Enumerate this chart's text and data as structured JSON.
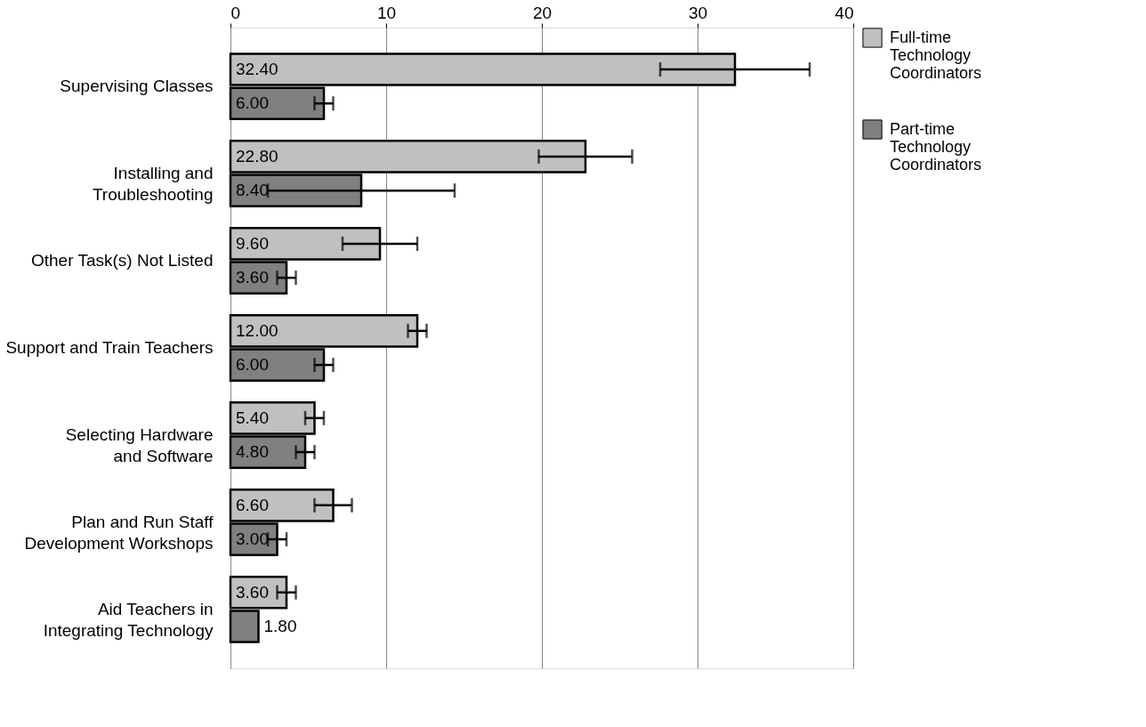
{
  "chart_data": {
    "type": "bar",
    "orientation": "horizontal",
    "categories": [
      "Supervising Classes",
      "Installing and Troubleshooting",
      "Other Task(s) Not Listed",
      "Support and Train Teachers",
      "Selecting Hardware and Software",
      "Plan and Run Staff Development Workshops",
      "Aid Teachers in Integrating Technology"
    ],
    "series": [
      {
        "name": "Full-time Technology Coordinators",
        "color": "#c0c0c0",
        "values": [
          32.4,
          22.8,
          9.6,
          12.0,
          5.4,
          6.6,
          3.6
        ],
        "errors": [
          4.8,
          3.0,
          2.4,
          0.6,
          0.6,
          1.2,
          0.6
        ],
        "value_labels": [
          "32.40",
          "22.80",
          "9.60",
          "12.00",
          "5.40",
          "6.60",
          "3.60"
        ]
      },
      {
        "name": "Part-time Technology Coordinators",
        "color": "#808080",
        "values": [
          6.0,
          8.4,
          3.6,
          6.0,
          4.8,
          3.0,
          1.8
        ],
        "errors": [
          0.6,
          6.0,
          0.6,
          0.6,
          0.6,
          0.6,
          null
        ],
        "value_labels": [
          "6.00",
          "8.40",
          "3.60",
          "6.00",
          "4.80",
          "3.00",
          "1.80"
        ]
      }
    ],
    "xlim": [
      0,
      40
    ],
    "xticks": [
      0,
      10,
      20,
      30,
      40
    ],
    "grid": "x",
    "legend": "right"
  }
}
